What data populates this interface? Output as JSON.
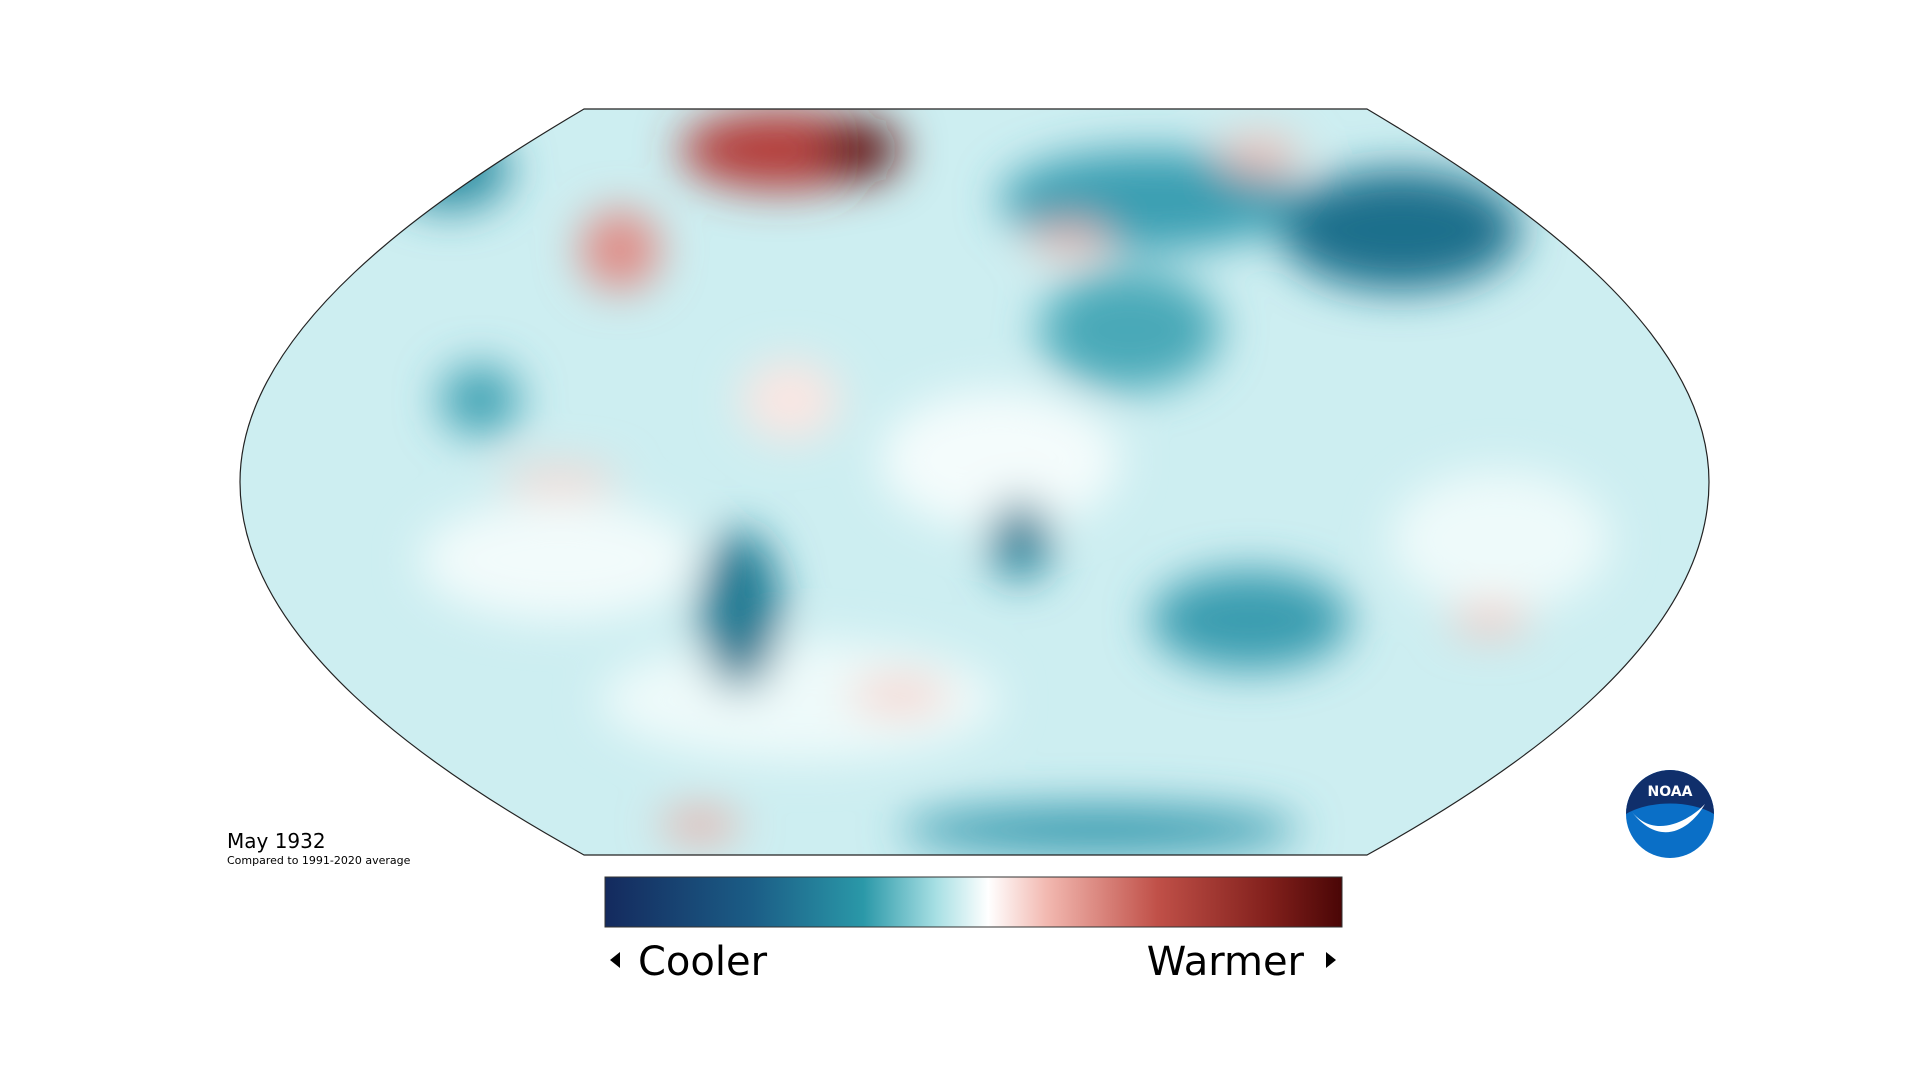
{
  "map": {
    "title": "May 1932",
    "subtitle": "Compared to 1991-2020 average"
  },
  "legend": {
    "low_label": "Cooler",
    "high_label": "Warmer"
  },
  "logo": {
    "text": "NOAA"
  }
}
